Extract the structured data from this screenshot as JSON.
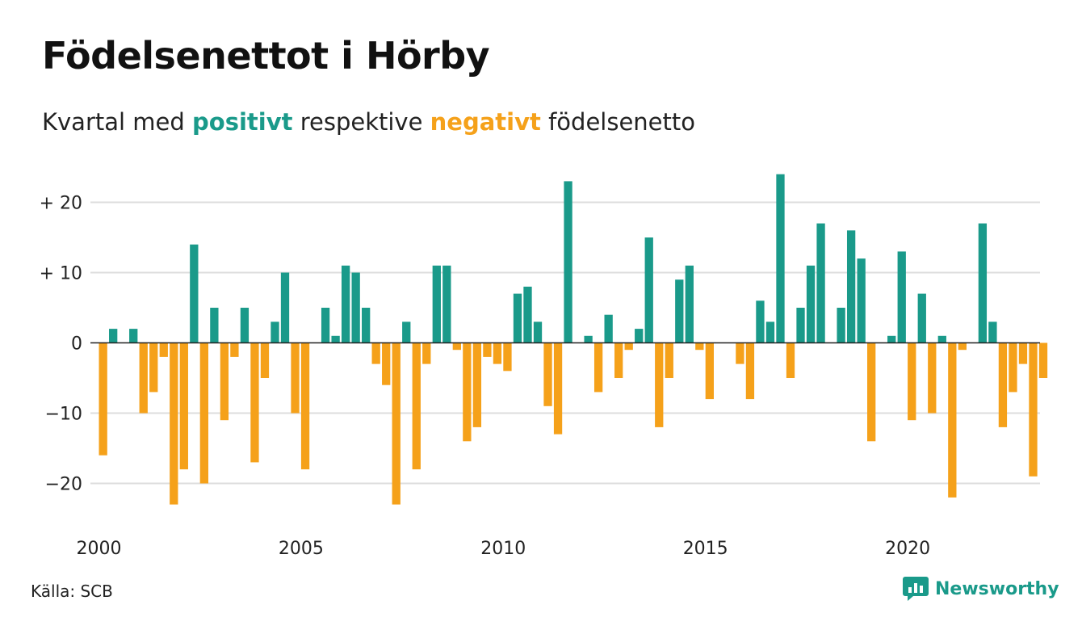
{
  "header": {
    "title": "Födelsenettot i Hörby",
    "subtitle_pre": "Kvartal med",
    "subtitle_pos": "positivt",
    "subtitle_mid": "respektive",
    "subtitle_neg": "negativt",
    "subtitle_post": "födelsenetto"
  },
  "footer": {
    "source": "Källa: SCB",
    "brand": "Newsworthy",
    "brand_icon": "newsworthy-logo-icon"
  },
  "colors": {
    "positive": "#1a9a8a",
    "negative": "#f5a11a",
    "grid": "#dddddd",
    "zero": "#222222",
    "brand": "#1a9a8a"
  },
  "chart_data": {
    "type": "bar",
    "x_start": "2000 Q1",
    "frequency": "quarterly",
    "values": [
      -16,
      2,
      0,
      2,
      -10,
      -7,
      -2,
      -23,
      -18,
      14,
      -20,
      5,
      -11,
      -2,
      5,
      -17,
      -5,
      3,
      10,
      -10,
      -18,
      0,
      5,
      1,
      11,
      10,
      5,
      -3,
      -6,
      -23,
      3,
      -18,
      -3,
      11,
      11,
      -1,
      -14,
      -12,
      -2,
      -3,
      -4,
      7,
      8,
      3,
      -9,
      -13,
      23,
      0,
      1,
      -7,
      4,
      -5,
      -1,
      2,
      15,
      -12,
      -5,
      9,
      11,
      -1,
      -8,
      0,
      0,
      -3,
      -8,
      6,
      3,
      24,
      -5,
      5,
      11,
      17,
      0,
      5,
      16,
      12,
      -14,
      0,
      1,
      13,
      -11,
      7,
      -10,
      1,
      -22,
      -1,
      0,
      17,
      3,
      -12,
      -7,
      -3,
      -19,
      -5
    ],
    "x_ticks": [
      {
        "index": 0,
        "label": "2000"
      },
      {
        "index": 20,
        "label": "2005"
      },
      {
        "index": 40,
        "label": "2010"
      },
      {
        "index": 60,
        "label": "2015"
      },
      {
        "index": 80,
        "label": "2020"
      }
    ],
    "y_ticks": [
      {
        "value": 20,
        "label": "+ 20"
      },
      {
        "value": 10,
        "label": "+ 10"
      },
      {
        "value": 0,
        "label": "0"
      },
      {
        "value": -10,
        "label": "−10"
      },
      {
        "value": -20,
        "label": "−20"
      }
    ],
    "ylim": [
      -26,
      25
    ],
    "grid": true,
    "xlabel": "",
    "ylabel": ""
  }
}
